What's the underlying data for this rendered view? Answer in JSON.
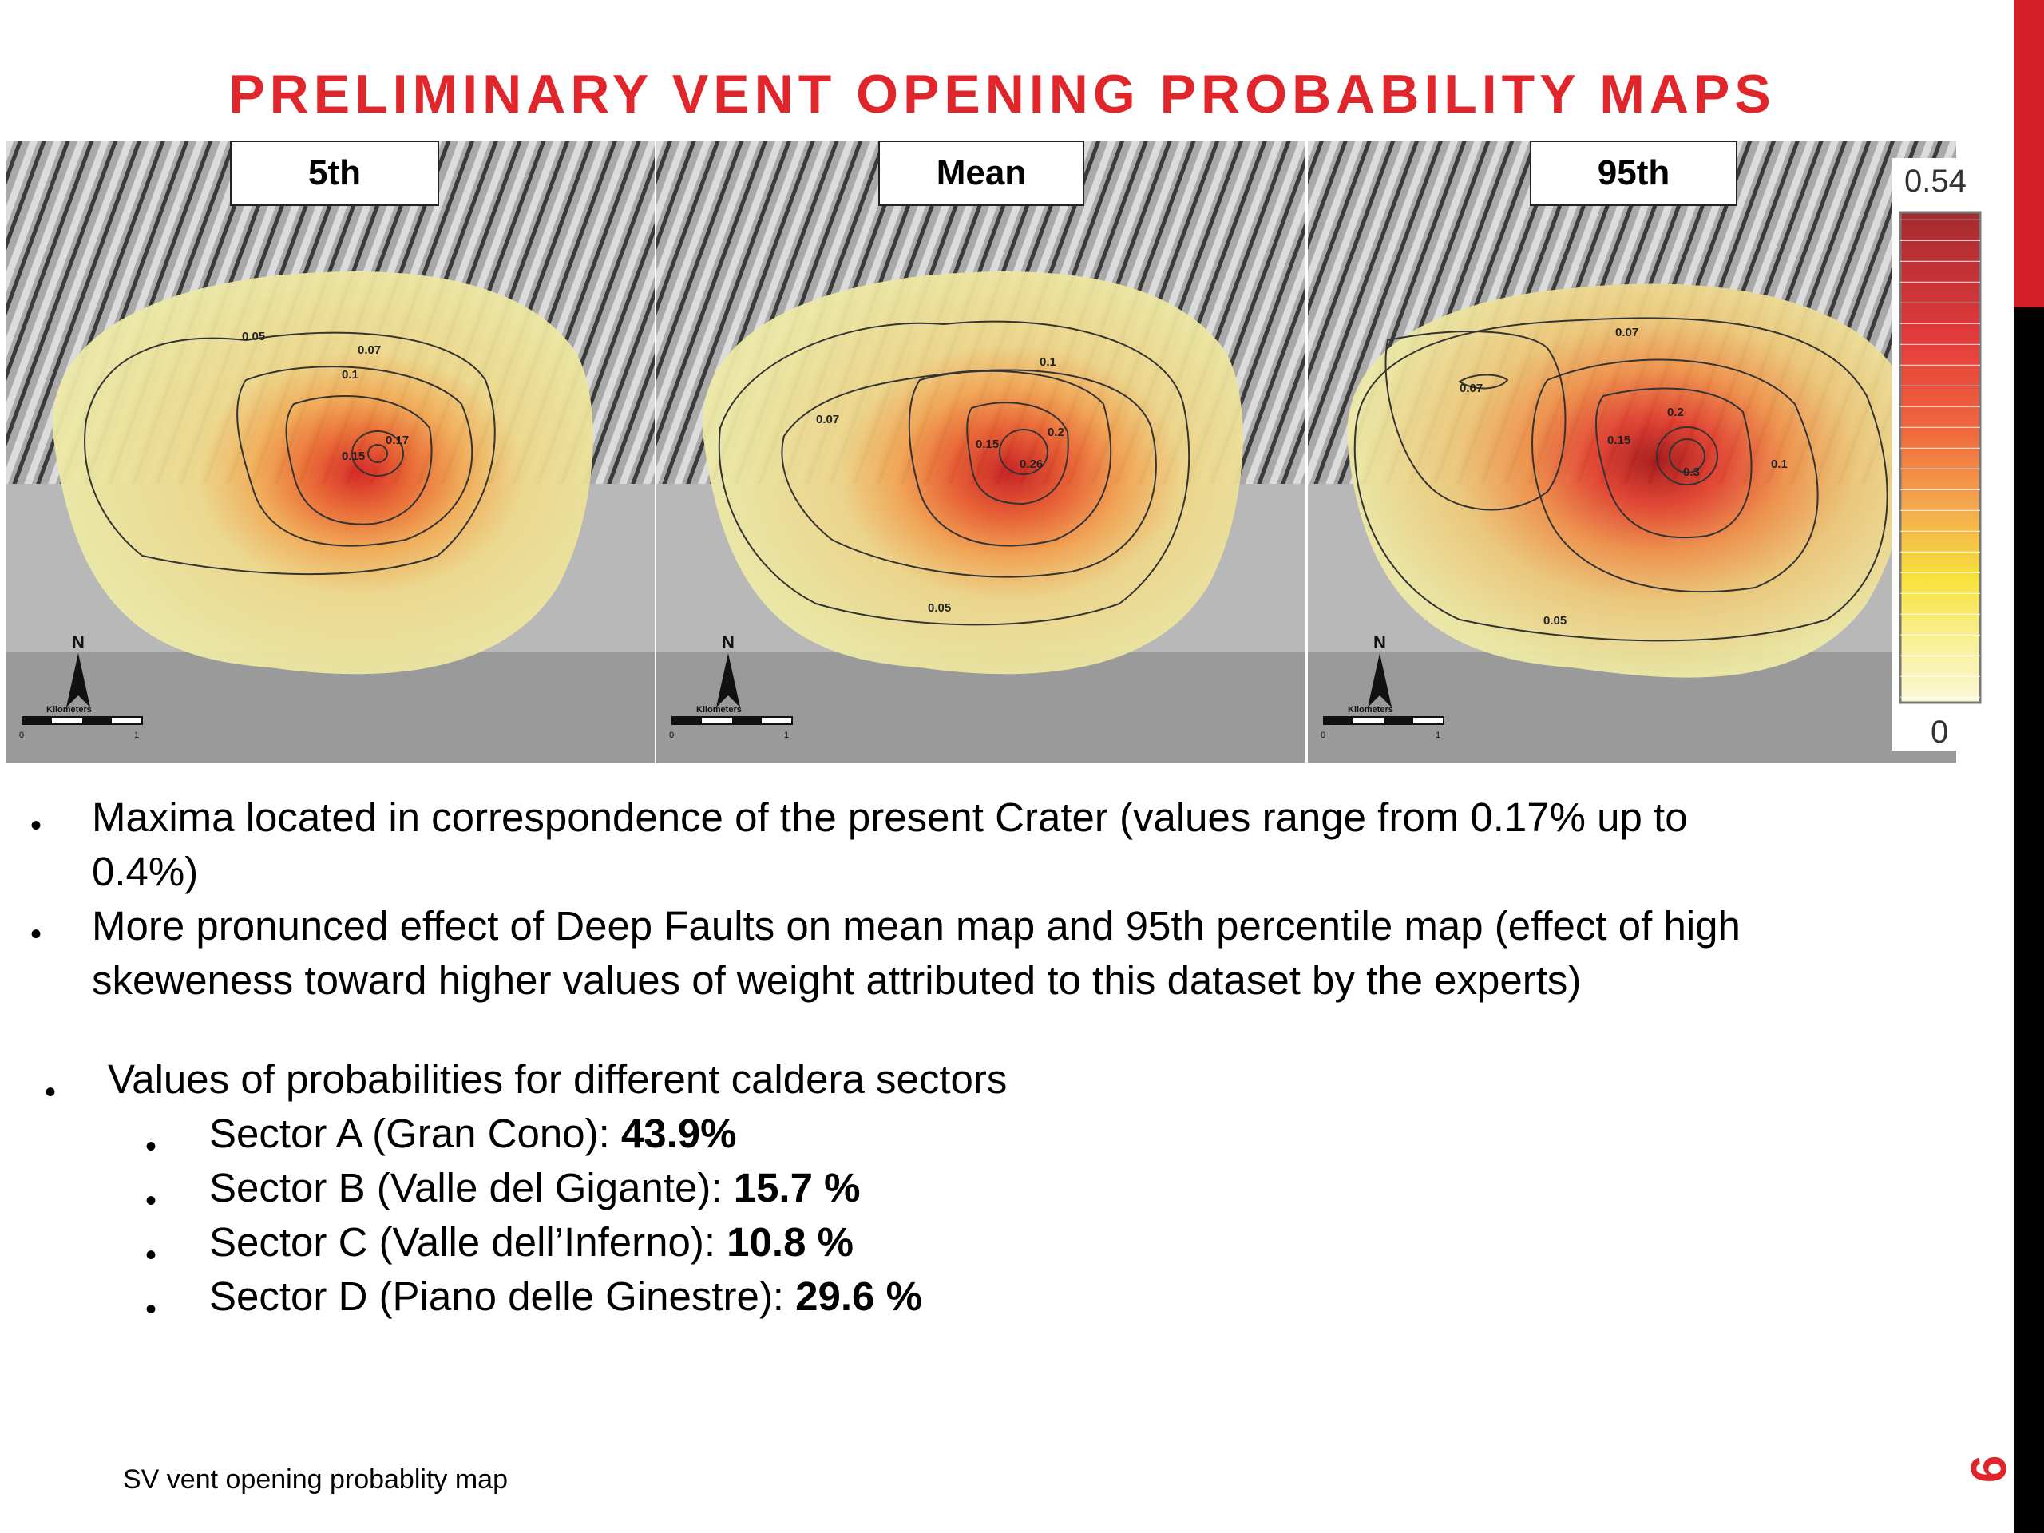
{
  "slide": {
    "title": "PRELIMINARY VENT OPENING PROBABILITY MAPS",
    "page_number": "9",
    "footer": "SV vent opening probablity map"
  },
  "maps": [
    {
      "label": "5th",
      "contours": [
        "0.05",
        "0.07",
        "0.1",
        "0.15",
        "0.17"
      ]
    },
    {
      "label": "Mean",
      "contours": [
        "0.07",
        "0.1",
        "0.15",
        "0.2",
        "0.26",
        "0.05"
      ]
    },
    {
      "label": "95th",
      "contours": [
        "0.07",
        "0.07",
        "0.2",
        "0.15",
        "0.1",
        "0.3",
        "0.05"
      ]
    }
  ],
  "map_extras": {
    "north": "N",
    "scale_label": "Kilometers",
    "scale_start": "0",
    "scale_end": "1"
  },
  "colorbar": {
    "max": "0.54",
    "min": "0"
  },
  "bullets": [
    {
      "text": "Maxima located in correspondence of the present Crater (values range from 0.17% up to",
      "cont": "0.4%)"
    },
    {
      "text": "More pronunced effect of Deep Faults on mean map and 95th percentile map (effect of high",
      "cont": "skeweness toward higher values of weight attributed to this dataset by the experts)"
    }
  ],
  "sectors_heading": "Values of probabilities for different caldera sectors",
  "sectors": [
    {
      "label": "Sector A (Gran Cono): ",
      "value": "43.9%"
    },
    {
      "label": "Sector B (Valle del Gigante): ",
      "value": "15.7 %"
    },
    {
      "label": "Sector C (Valle dell’Inferno): ",
      "value": "10.8 %"
    },
    {
      "label": "Sector D (Piano delle Ginestre): ",
      "value": "29.6 %"
    }
  ]
}
